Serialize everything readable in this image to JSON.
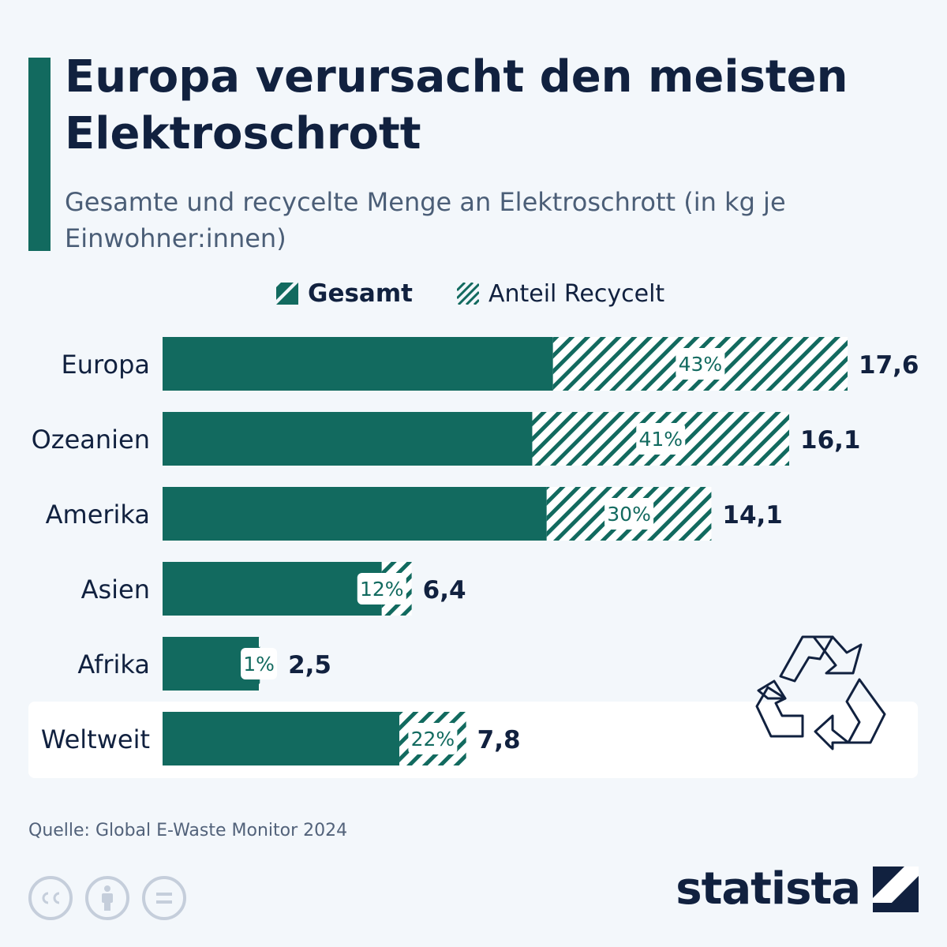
{
  "title": "Europa verursacht den meisten Elektroschrott",
  "subtitle": "Gesamte und recycelte Menge an Elektroschrott (in kg je Einwohner:innen)",
  "legend": {
    "total": "Gesamt",
    "recycled": "Anteil Recycelt"
  },
  "source": "Quelle: Global E-Waste Monitor 2024",
  "brand": "statista",
  "colors": {
    "accent": "#126a5f",
    "text": "#11213f",
    "muted": "#4b5e77",
    "background": "#f3f7fb",
    "highlight": "#ffffff"
  },
  "icons": [
    "recycle-icon",
    "cc-icon",
    "attribution-icon",
    "no-derivatives-icon",
    "statista-logo-icon"
  ],
  "chart_data": {
    "type": "bar",
    "orientation": "horizontal",
    "categories": [
      "Europa",
      "Ozeanien",
      "Amerika",
      "Asien",
      "Afrika",
      "Weltweit"
    ],
    "series": [
      {
        "name": "Gesamt",
        "values": [
          17.6,
          16.1,
          14.1,
          6.4,
          2.5,
          7.8
        ]
      },
      {
        "name": "Anteil Recycelt",
        "values": [
          43,
          41,
          30,
          12,
          1,
          22
        ]
      }
    ],
    "value_labels": [
      "17,6",
      "16,1",
      "14,1",
      "6,4",
      "2,5",
      "7,8"
    ],
    "share_labels": [
      "43%",
      "41%",
      "30%",
      "12%",
      "1%",
      "22%"
    ],
    "highlight": "Weltweit",
    "grid": false,
    "legend_position": "top"
  }
}
